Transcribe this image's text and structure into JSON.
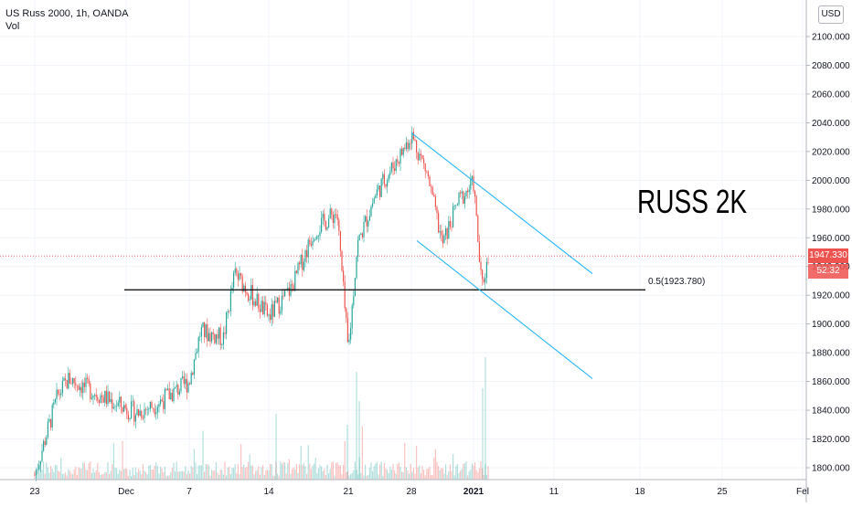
{
  "legend": {
    "symbol": "US Russ 2000, 1h, OANDA",
    "volume": "Vol"
  },
  "annotation": "RUSS 2K",
  "fib_label": "0.5(1923.780)",
  "currency": "USD",
  "last_price": "1947.330",
  "countdown": "52:32",
  "colors": {
    "up": "#26a69a",
    "down": "#ef5350",
    "channel": "#29b6f6",
    "fib": "#000000",
    "grid": "#f0f3fa"
  },
  "chart_data": {
    "type": "candlestick",
    "title": "",
    "y_axis": {
      "ticks": [
        "1800.000",
        "1820.000",
        "1840.000",
        "1860.000",
        "1880.000",
        "1900.000",
        "1920.000",
        "1940.000",
        "1960.000",
        "1980.000",
        "2000.000",
        "2020.000",
        "2040.000",
        "2060.000",
        "2080.000",
        "2100.000"
      ],
      "range": [
        1796,
        2122
      ]
    },
    "x_axis": {
      "ticks": [
        "23",
        "Dec",
        "7",
        "14",
        "21",
        "28",
        "2021",
        "11",
        "18",
        "25",
        "Fel"
      ]
    },
    "fib_level": 1923.78,
    "last_price": 1947.33,
    "price_path": [
      {
        "date": "Nov 23",
        "price": 1795
      },
      {
        "date": "Nov 25",
        "price": 1850
      },
      {
        "date": "Nov 26",
        "price": 1862
      },
      {
        "date": "Nov 30",
        "price": 1845
      },
      {
        "date": "Dec 2",
        "price": 1838
      },
      {
        "date": "Dec 4",
        "price": 1845
      },
      {
        "date": "Dec 7",
        "price": 1860
      },
      {
        "date": "Dec 8",
        "price": 1895
      },
      {
        "date": "Dec 10",
        "price": 1890
      },
      {
        "date": "Dec 11",
        "price": 1935
      },
      {
        "date": "Dec 14",
        "price": 1905
      },
      {
        "date": "Dec 16",
        "price": 1925
      },
      {
        "date": "Dec 17",
        "price": 1945
      },
      {
        "date": "Dec 18",
        "price": 1965
      },
      {
        "date": "Dec 20",
        "price": 1978
      },
      {
        "date": "Dec 21",
        "price": 1880
      },
      {
        "date": "Dec 22",
        "price": 1955
      },
      {
        "date": "Dec 24",
        "price": 1990
      },
      {
        "date": "Dec 27",
        "price": 2020
      },
      {
        "date": "Dec 28",
        "price": 2032
      },
      {
        "date": "Dec 29",
        "price": 2005
      },
      {
        "date": "Dec 30",
        "price": 1955
      },
      {
        "date": "Dec 31",
        "price": 1985
      },
      {
        "date": "Jan 1",
        "price": 1998
      },
      {
        "date": "Jan 2",
        "price": 1925
      },
      {
        "date": "Jan 3",
        "price": 1950
      }
    ],
    "channel": {
      "upper": [
        {
          "date": "Dec 28",
          "price": 2033
        },
        {
          "date": "Jan 15",
          "price": 1935
        }
      ],
      "lower": [
        {
          "date": "Dec 28",
          "price": 1958
        },
        {
          "date": "Jan 15",
          "price": 1862
        }
      ]
    }
  }
}
